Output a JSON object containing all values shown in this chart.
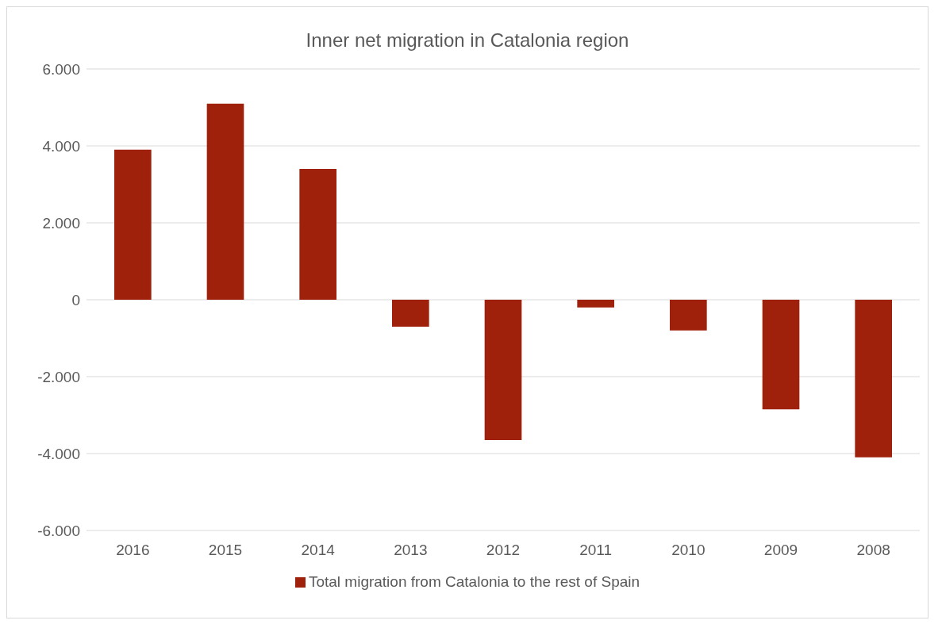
{
  "chart_data": {
    "type": "bar",
    "title": "Inner net migration in Catalonia region",
    "categories": [
      "2016",
      "2015",
      "2014",
      "2013",
      "2012",
      "2011",
      "2010",
      "2009",
      "2008"
    ],
    "series": [
      {
        "name": "Total migration from Catalonia to the rest of Spain",
        "color": "#a0210b",
        "values": [
          3900,
          5100,
          3400,
          -700,
          -3650,
          -200,
          -800,
          -2850,
          -4100
        ]
      }
    ],
    "ylim": [
      -6000,
      6000
    ],
    "yticks": [
      {
        "value": -6000,
        "label": "-6.000"
      },
      {
        "value": -4000,
        "label": "-4.000"
      },
      {
        "value": -2000,
        "label": "-2.000"
      },
      {
        "value": 0,
        "label": "0"
      },
      {
        "value": 2000,
        "label": "2.000"
      },
      {
        "value": 4000,
        "label": "4.000"
      },
      {
        "value": 6000,
        "label": "6.000"
      }
    ],
    "grid": "y",
    "legend": "bottom"
  }
}
